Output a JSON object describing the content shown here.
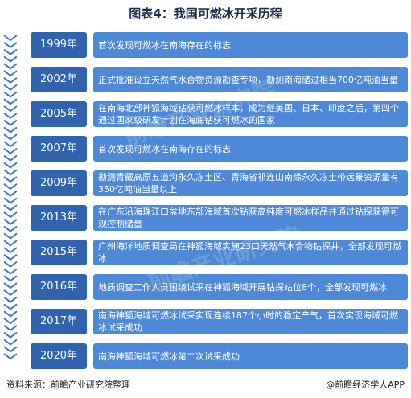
{
  "title": "图表4：我国可燃冰开采历程",
  "timeline": [
    {
      "year": "1999年",
      "text": "首次发现可燃冰在南海存在的标志"
    },
    {
      "year": "2002年",
      "text": "正式批准设立天然气水合物资源勘查专项，勘测南海储过相当700亿吨油当量"
    },
    {
      "year": "2005年",
      "text": "在南海北部神狐海域钻获可燃冰样本，成为继美国、日本、印度之后，第四个通过国家级研发计划在海底钻获可燃冰的国家"
    },
    {
      "year": "2007年",
      "text": "首次发现可燃冰在南海存在的标志"
    },
    {
      "year": "2009年",
      "text": "勘测青藏高原五道沟永久冻土区、青海省祁连山南缘永久冻土带远景资源量有350亿吨油当量以上"
    },
    {
      "year": "2013年",
      "text": "在广东沿海珠江口盆地东部海域首次钻获高纯度可燃冰样品并通过钻探获得可观控制储量"
    },
    {
      "year": "2015年",
      "text": "广州海洋地质调查局在神狐海域实施23口天然气水合物钻探井，全部发现可燃冰"
    },
    {
      "year": "2016年",
      "text": "地质调查工作人员围绕试采在神狐海域开展钻探站位8个，全部发现可燃冰"
    },
    {
      "year": "2017年",
      "text": "南海神狐海域可燃冰试采实现连续187个小时的稳定产气，首次实现海域可燃冰试采成功"
    },
    {
      "year": "2020年",
      "text": "南海神狐海域可燃冰第二次试采成功"
    }
  ],
  "watermark": "前瞻产业研究院",
  "footer": {
    "source": "资料来源：前瞻产业研究院整理",
    "brand": "@前瞻经济学人APP"
  },
  "colors": {
    "year_box": "#2f63ad",
    "desc_box": "#4d89d6",
    "rail": "#3f79c7"
  }
}
